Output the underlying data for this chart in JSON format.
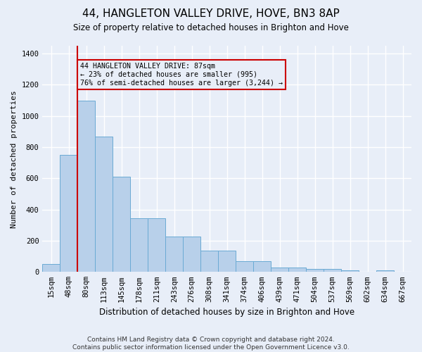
{
  "title": "44, HANGLETON VALLEY DRIVE, HOVE, BN3 8AP",
  "subtitle": "Size of property relative to detached houses in Brighton and Hove",
  "xlabel": "Distribution of detached houses by size in Brighton and Hove",
  "ylabel": "Number of detached properties",
  "footer_line1": "Contains HM Land Registry data © Crown copyright and database right 2024.",
  "footer_line2": "Contains public sector information licensed under the Open Government Licence v3.0.",
  "bar_labels": [
    "15sqm",
    "48sqm",
    "80sqm",
    "113sqm",
    "145sqm",
    "178sqm",
    "211sqm",
    "243sqm",
    "276sqm",
    "308sqm",
    "341sqm",
    "374sqm",
    "406sqm",
    "439sqm",
    "471sqm",
    "504sqm",
    "537sqm",
    "569sqm",
    "602sqm",
    "634sqm",
    "667sqm"
  ],
  "bar_values": [
    50,
    750,
    1100,
    870,
    610,
    345,
    345,
    225,
    225,
    135,
    135,
    70,
    70,
    30,
    30,
    20,
    20,
    10,
    0,
    10,
    0
  ],
  "property_line_x": 1.5,
  "annotation_text": "44 HANGLETON VALLEY DRIVE: 87sqm\n← 23% of detached houses are smaller (995)\n76% of semi-detached houses are larger (3,244) →",
  "bar_color": "#b8d0ea",
  "bar_edge_color": "#6aaad4",
  "line_color": "#cc0000",
  "annotation_box_color": "#cc0000",
  "bg_color": "#e8eef8",
  "ylim": [
    0,
    1450
  ],
  "yticks": [
    0,
    200,
    400,
    600,
    800,
    1000,
    1200,
    1400
  ],
  "title_fontsize": 11,
  "subtitle_fontsize": 8.5,
  "tick_fontsize": 7.5,
  "ylabel_fontsize": 8,
  "xlabel_fontsize": 8.5,
  "footer_fontsize": 6.5
}
